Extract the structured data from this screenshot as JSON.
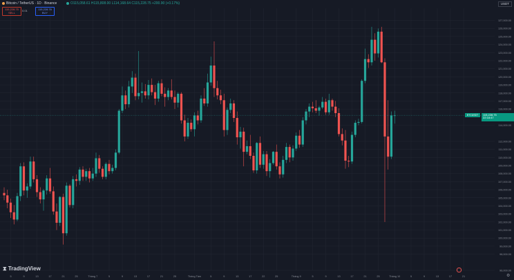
{
  "header": {
    "symbol": "Bitcoin / TetherUS · 1D · Binance",
    "ohlc": "O115,058.61 H115,808.00 L114,168.64 C115,228.75 +200.90 (+0.17%)",
    "currency": "USDT"
  },
  "trade": {
    "sell_price": "115,228.75",
    "sell_label": "SELL",
    "spread": "0.01",
    "buy_price": "115,228.76",
    "buy_label": "BUY"
  },
  "last_price": {
    "symbol_tag": "BTCUSDT",
    "value": "115,228.75",
    "countdown": "22:18:47"
  },
  "logo": "TradingView",
  "colors": {
    "up": "#26a69a",
    "down": "#ef5350",
    "background": "#161a25",
    "grid": "#232733",
    "text": "#8a8e98"
  },
  "chart_data": {
    "type": "candlestick",
    "title": "Bitcoin / TetherUS · 1D · Binance",
    "ylim": [
      96000,
      128500
    ],
    "y_ticks": [
      {
        "value": 96000,
        "label": "96,000.00"
      },
      {
        "value": 98000,
        "label": "98,000.00"
      },
      {
        "value": 99000,
        "label": "99,000.00"
      },
      {
        "value": 100000,
        "label": "100,000.00"
      },
      {
        "value": 101000,
        "label": "101,000.00"
      },
      {
        "value": 102000,
        "label": "102,000.00"
      },
      {
        "value": 103000,
        "label": "103,000.00"
      },
      {
        "value": 104000,
        "label": "104,000.00"
      },
      {
        "value": 105000,
        "label": "105,000.00"
      },
      {
        "value": 106000,
        "label": "106,000.00"
      },
      {
        "value": 107000,
        "label": "107,000.00"
      },
      {
        "value": 108000,
        "label": "108,000.00"
      },
      {
        "value": 109000,
        "label": "109,000.00"
      },
      {
        "value": 110000,
        "label": "110,000.00"
      },
      {
        "value": 111000,
        "label": "111,000.00"
      },
      {
        "value": 112000,
        "label": "112,000.00"
      },
      {
        "value": 114000,
        "label": "114,000.00"
      },
      {
        "value": 116000,
        "label": "116,000.00"
      },
      {
        "value": 117000,
        "label": "117,000.00"
      },
      {
        "value": 118000,
        "label": "118,000.00"
      },
      {
        "value": 119000,
        "label": "119,000.00"
      },
      {
        "value": 120000,
        "label": "120,000.00"
      },
      {
        "value": 121000,
        "label": "121,000.00"
      },
      {
        "value": 122000,
        "label": "122,000.00"
      },
      {
        "value": 123000,
        "label": "123,000.00"
      },
      {
        "value": 124000,
        "label": "124,000.00"
      },
      {
        "value": 125000,
        "label": "125,000.00"
      },
      {
        "value": 126000,
        "label": "126,000.00"
      },
      {
        "value": 127000,
        "label": "127,000.00"
      }
    ],
    "x_ticks": [
      {
        "index": 2,
        "label": "5"
      },
      {
        "index": 6,
        "label": "9"
      },
      {
        "index": 10,
        "label": "13"
      },
      {
        "index": 14,
        "label": "17"
      },
      {
        "index": 18,
        "label": "21"
      },
      {
        "index": 22,
        "label": "25"
      },
      {
        "index": 27,
        "label": "Tháng 7"
      },
      {
        "index": 32,
        "label": "5"
      },
      {
        "index": 36,
        "label": "9"
      },
      {
        "index": 40,
        "label": "13"
      },
      {
        "index": 44,
        "label": "17"
      },
      {
        "index": 48,
        "label": "21"
      },
      {
        "index": 52,
        "label": "25"
      },
      {
        "index": 58,
        "label": "Tháng Tám"
      },
      {
        "index": 63,
        "label": "5"
      },
      {
        "index": 67,
        "label": "9"
      },
      {
        "index": 71,
        "label": "13"
      },
      {
        "index": 75,
        "label": "17"
      },
      {
        "index": 79,
        "label": "22"
      },
      {
        "index": 83,
        "label": "25"
      },
      {
        "index": 89,
        "label": "Tháng 9"
      },
      {
        "index": 94,
        "label": "5"
      },
      {
        "index": 98,
        "label": "9"
      },
      {
        "index": 102,
        "label": "13"
      },
      {
        "index": 106,
        "label": "17"
      },
      {
        "index": 110,
        "label": "21"
      },
      {
        "index": 114,
        "label": "25"
      },
      {
        "index": 119,
        "label": "Tháng 10"
      },
      {
        "index": 124,
        "label": "5"
      },
      {
        "index": 128,
        "label": "9"
      },
      {
        "index": 132,
        "label": "13"
      },
      {
        "index": 136,
        "label": "17"
      },
      {
        "index": 140,
        "label": "21"
      }
    ],
    "candles": [
      [
        105600,
        106300,
        104700,
        105300
      ],
      [
        105300,
        106000,
        103700,
        104400
      ],
      [
        104400,
        104900,
        102500,
        103200
      ],
      [
        103200,
        104100,
        101700,
        102300
      ],
      [
        102300,
        105600,
        102100,
        105200
      ],
      [
        105200,
        109300,
        104600,
        108900
      ],
      [
        108900,
        109400,
        105300,
        105900
      ],
      [
        105900,
        106800,
        105000,
        106400
      ],
      [
        106400,
        110100,
        106100,
        109500
      ],
      [
        109500,
        110100,
        106900,
        107300
      ],
      [
        107300,
        107800,
        105100,
        105700
      ],
      [
        105700,
        106300,
        104300,
        104800
      ],
      [
        104800,
        106100,
        103400,
        105900
      ],
      [
        105900,
        107800,
        105400,
        107400
      ],
      [
        107400,
        108700,
        105500,
        105800
      ],
      [
        105800,
        106400,
        102900,
        103300
      ],
      [
        103300,
        104300,
        101000,
        101900
      ],
      [
        101900,
        105200,
        101500,
        105100
      ],
      [
        105100,
        105500,
        99200,
        100600
      ],
      [
        100600,
        106900,
        100300,
        106500
      ],
      [
        106500,
        106700,
        103800,
        104100
      ],
      [
        104100,
        107700,
        103700,
        107300
      ],
      [
        107300,
        107900,
        106400,
        107100
      ],
      [
        107100,
        108800,
        106600,
        108500
      ],
      [
        108500,
        108900,
        107100,
        107600
      ],
      [
        107600,
        108600,
        107100,
        108300
      ],
      [
        108300,
        108700,
        106900,
        107400
      ],
      [
        107400,
        108700,
        107100,
        108000
      ],
      [
        108000,
        110600,
        107600,
        109900
      ],
      [
        109900,
        110300,
        108100,
        108600
      ],
      [
        108600,
        108900,
        107300,
        107600
      ],
      [
        107600,
        109400,
        107300,
        109200
      ],
      [
        109200,
        109700,
        107900,
        108300
      ],
      [
        108300,
        109100,
        108000,
        108700
      ],
      [
        108700,
        111000,
        108400,
        110600
      ],
      [
        110600,
        116000,
        110400,
        115800
      ],
      [
        115800,
        118800,
        115500,
        117700
      ],
      [
        117700,
        118300,
        116000,
        116600
      ],
      [
        116600,
        119500,
        116200,
        118800
      ],
      [
        118800,
        120700,
        118000,
        119900
      ],
      [
        119900,
        120400,
        117100,
        117600
      ],
      [
        117600,
        123200,
        117200,
        118000
      ],
      [
        118000,
        119300,
        116800,
        118200
      ],
      [
        118200,
        119100,
        117300,
        117700
      ],
      [
        117700,
        119600,
        117200,
        119000
      ],
      [
        119000,
        119800,
        117700,
        118100
      ],
      [
        118100,
        119000,
        116500,
        117300
      ],
      [
        117300,
        119500,
        116900,
        119200
      ],
      [
        119200,
        119700,
        117600,
        117900
      ],
      [
        117900,
        118700,
        116300,
        117500
      ],
      [
        117500,
        118600,
        117100,
        118300
      ],
      [
        118300,
        119700,
        117200,
        117500
      ],
      [
        117500,
        118300,
        116000,
        116800
      ],
      [
        116800,
        118100,
        116200,
        117900
      ],
      [
        117900,
        118100,
        114200,
        114600
      ],
      [
        114600,
        115300,
        112000,
        112600
      ],
      [
        112600,
        114900,
        112300,
        114300
      ],
      [
        114300,
        114700,
        113200,
        113500
      ],
      [
        113500,
        115600,
        112600,
        115200
      ],
      [
        115200,
        115800,
        114100,
        114600
      ],
      [
        114600,
        117700,
        114300,
        117300
      ],
      [
        117300,
        118600,
        116400,
        116700
      ],
      [
        116700,
        120400,
        116300,
        119300
      ],
      [
        119300,
        122500,
        118900,
        121400
      ],
      [
        121400,
        124400,
        117500,
        118600
      ],
      [
        118600,
        119500,
        117200,
        117700
      ],
      [
        117700,
        118400,
        116600,
        117100
      ],
      [
        117100,
        117900,
        112600,
        113400
      ],
      [
        113400,
        116200,
        112800,
        115900
      ],
      [
        115900,
        117300,
        115500,
        116700
      ],
      [
        116700,
        117100,
        114400,
        114900
      ],
      [
        114900,
        115700,
        111600,
        112500
      ],
      [
        112500,
        113800,
        111100,
        113200
      ],
      [
        113200,
        113700,
        108900,
        110700
      ],
      [
        110700,
        112100,
        110400,
        111400
      ],
      [
        111400,
        112800,
        109800,
        110200
      ],
      [
        110200,
        110600,
        108100,
        108400
      ],
      [
        108400,
        111900,
        108000,
        111800
      ],
      [
        111800,
        112600,
        108700,
        109100
      ],
      [
        109100,
        110800,
        108600,
        110400
      ],
      [
        110400,
        110800,
        107700,
        108300
      ],
      [
        108300,
        109800,
        107500,
        109300
      ],
      [
        109300,
        110800,
        109100,
        110700
      ],
      [
        110700,
        111600,
        108500,
        108900
      ],
      [
        108900,
        109400,
        107400,
        107900
      ],
      [
        107900,
        110200,
        107500,
        109700
      ],
      [
        109700,
        111800,
        109300,
        111300
      ],
      [
        111300,
        111600,
        109400,
        110000
      ],
      [
        110000,
        111500,
        109600,
        111100
      ],
      [
        111100,
        113100,
        110800,
        112700
      ],
      [
        112700,
        113400,
        111200,
        111600
      ],
      [
        111600,
        115000,
        111300,
        114600
      ],
      [
        114600,
        116000,
        114100,
        115700
      ],
      [
        115700,
        116700,
        115000,
        116300
      ],
      [
        116300,
        116900,
        115600,
        116100
      ],
      [
        116100,
        117100,
        115500,
        115800
      ],
      [
        115800,
        116400,
        115200,
        116200
      ],
      [
        116200,
        117500,
        116000,
        116900
      ],
      [
        116900,
        117300,
        115300,
        115600
      ],
      [
        115600,
        117900,
        115300,
        117100
      ],
      [
        117100,
        117300,
        115800,
        116300
      ],
      [
        116300,
        117000,
        115000,
        115500
      ],
      [
        115500,
        116100,
        112600,
        112900
      ],
      [
        112900,
        113600,
        111500,
        112100
      ],
      [
        112100,
        113400,
        108600,
        109600
      ],
      [
        109600,
        110200,
        108800,
        109500
      ],
      [
        109500,
        113200,
        109200,
        112800
      ],
      [
        112800,
        114600,
        112500,
        114300
      ],
      [
        114300,
        114800,
        114000,
        114400
      ],
      [
        114400,
        119700,
        114200,
        119500
      ],
      [
        119500,
        123500,
        119200,
        122200
      ],
      [
        122200,
        122800,
        121100,
        121800
      ],
      [
        121800,
        126200,
        121400,
        124600
      ],
      [
        124600,
        125400,
        122000,
        122900
      ],
      [
        122900,
        126000,
        122400,
        125600
      ],
      [
        125600,
        126200,
        121700,
        121800
      ],
      [
        121800,
        122300,
        102000,
        112600
      ],
      [
        112600,
        117100,
        108500,
        110100
      ],
      [
        110100,
        115700,
        109800,
        115200
      ],
      [
        115200,
        115800,
        114200,
        115200
      ]
    ],
    "current_price": 115228.75
  }
}
